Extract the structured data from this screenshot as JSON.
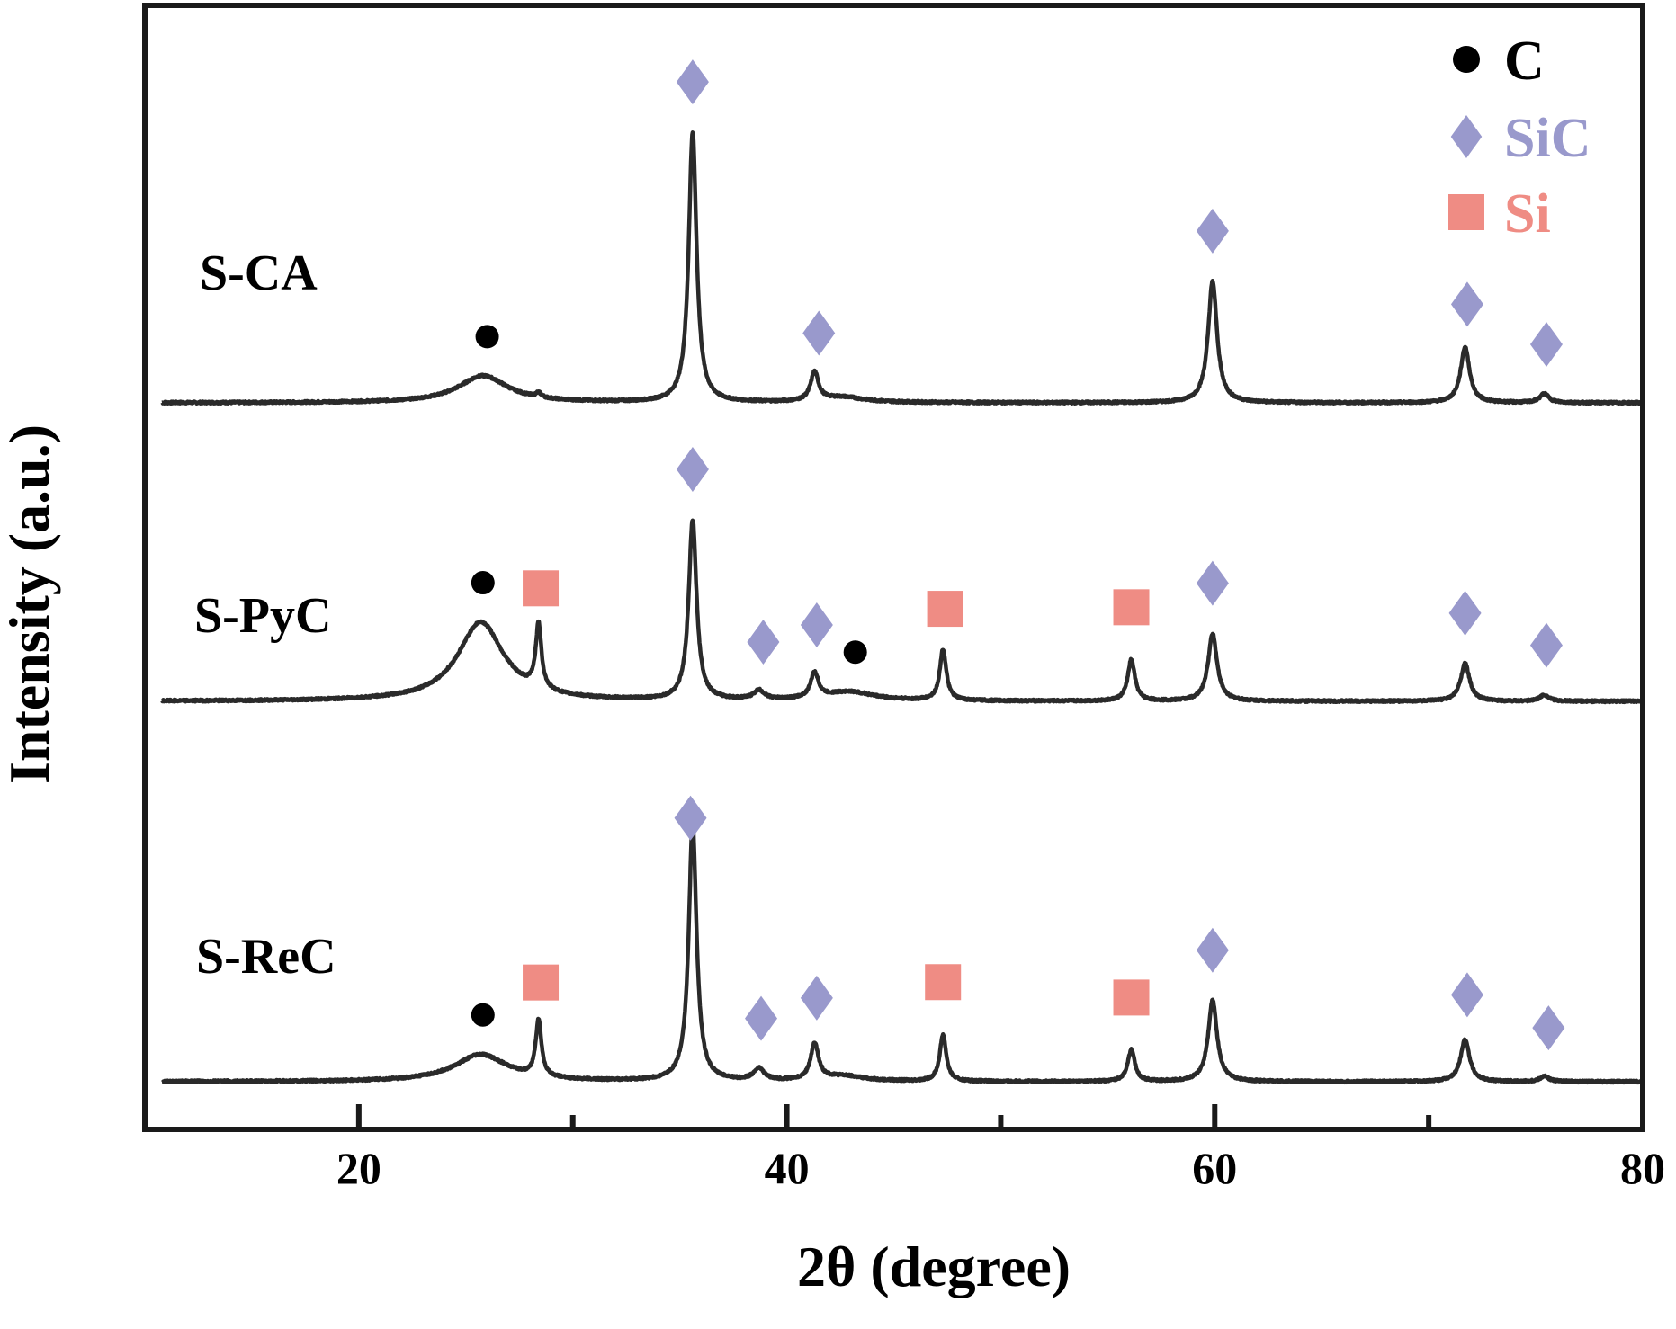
{
  "chart_data": {
    "type": "line",
    "title": "",
    "xlabel": "2θ (degree)",
    "ylabel": "Intensity (a.u.)",
    "xlim": [
      10,
      80
    ],
    "x_major_ticks": [
      20,
      40,
      60,
      80
    ],
    "x_minor_ticks": [
      30,
      50,
      70
    ],
    "grid": false,
    "legend_position": "top-right",
    "legend": [
      {
        "label": "C",
        "marker": "circle",
        "color": "#000000"
      },
      {
        "label": "SiC",
        "marker": "diamond",
        "color": "#9999cc"
      },
      {
        "label": "Si",
        "marker": "square",
        "color": "#ef8c84"
      }
    ],
    "series": [
      {
        "name": "S-CA",
        "peaks": [
          {
            "x": 25.8,
            "height": 30,
            "width": 1.4,
            "phase": "C"
          },
          {
            "x": 28.4,
            "height": 5,
            "width": 0.15
          },
          {
            "x": 35.6,
            "height": 300,
            "width": 0.22,
            "phase": "SiC"
          },
          {
            "x": 41.3,
            "height": 32,
            "width": 0.22,
            "phase": "SiC"
          },
          {
            "x": 42.6,
            "height": 6,
            "width": 1.2
          },
          {
            "x": 59.9,
            "height": 135,
            "width": 0.25,
            "phase": "SiC"
          },
          {
            "x": 71.7,
            "height": 62,
            "width": 0.25,
            "phase": "SiC"
          },
          {
            "x": 75.4,
            "height": 10,
            "width": 0.25,
            "phase": "SiC"
          }
        ]
      },
      {
        "name": "S-PyC",
        "peaks": [
          {
            "x": 25.7,
            "height": 88,
            "width": 1.3,
            "phase": "C"
          },
          {
            "x": 28.4,
            "height": 72,
            "width": 0.16,
            "phase": "Si"
          },
          {
            "x": 35.6,
            "height": 200,
            "width": 0.22,
            "phase": "SiC"
          },
          {
            "x": 38.7,
            "height": 10,
            "width": 0.3,
            "phase": "SiC"
          },
          {
            "x": 41.3,
            "height": 28,
            "width": 0.22,
            "phase": "SiC"
          },
          {
            "x": 42.9,
            "height": 10,
            "width": 1.4,
            "phase": "C"
          },
          {
            "x": 47.3,
            "height": 57,
            "width": 0.18,
            "phase": "Si"
          },
          {
            "x": 56.1,
            "height": 46,
            "width": 0.2,
            "phase": "Si"
          },
          {
            "x": 59.9,
            "height": 75,
            "width": 0.25,
            "phase": "SiC"
          },
          {
            "x": 71.7,
            "height": 42,
            "width": 0.25,
            "phase": "SiC"
          },
          {
            "x": 75.4,
            "height": 7,
            "width": 0.25,
            "phase": "SiC"
          }
        ]
      },
      {
        "name": "S-ReC",
        "peaks": [
          {
            "x": 25.7,
            "height": 30,
            "width": 1.5,
            "phase": "C"
          },
          {
            "x": 28.4,
            "height": 63,
            "width": 0.16,
            "phase": "Si"
          },
          {
            "x": 35.6,
            "height": 285,
            "width": 0.22,
            "phase": "SiC"
          },
          {
            "x": 38.7,
            "height": 13,
            "width": 0.3,
            "phase": "SiC"
          },
          {
            "x": 41.3,
            "height": 40,
            "width": 0.22,
            "phase": "SiC"
          },
          {
            "x": 42.6,
            "height": 6,
            "width": 1.2
          },
          {
            "x": 47.3,
            "height": 52,
            "width": 0.18,
            "phase": "Si"
          },
          {
            "x": 56.1,
            "height": 35,
            "width": 0.2,
            "phase": "Si"
          },
          {
            "x": 59.9,
            "height": 90,
            "width": 0.25,
            "phase": "SiC"
          },
          {
            "x": 71.7,
            "height": 47,
            "width": 0.25,
            "phase": "SiC"
          },
          {
            "x": 75.4,
            "height": 6,
            "width": 0.25,
            "phase": "SiC"
          }
        ]
      }
    ],
    "phase_markers": [
      {
        "series": "S-CA",
        "phase": "C",
        "x": 26.0
      },
      {
        "series": "S-CA",
        "phase": "SiC",
        "x": 35.6
      },
      {
        "series": "S-CA",
        "phase": "SiC",
        "x": 41.5
      },
      {
        "series": "S-CA",
        "phase": "SiC",
        "x": 59.9
      },
      {
        "series": "S-CA",
        "phase": "SiC",
        "x": 71.8
      },
      {
        "series": "S-CA",
        "phase": "SiC",
        "x": 75.5
      },
      {
        "series": "S-PyC",
        "phase": "C",
        "x": 25.8
      },
      {
        "series": "S-PyC",
        "phase": "Si",
        "x": 28.5
      },
      {
        "series": "S-PyC",
        "phase": "SiC",
        "x": 35.6
      },
      {
        "series": "S-PyC",
        "phase": "SiC",
        "x": 38.9
      },
      {
        "series": "S-PyC",
        "phase": "SiC",
        "x": 41.4
      },
      {
        "series": "S-PyC",
        "phase": "C",
        "x": 43.2
      },
      {
        "series": "S-PyC",
        "phase": "Si",
        "x": 47.4
      },
      {
        "series": "S-PyC",
        "phase": "Si",
        "x": 56.1
      },
      {
        "series": "S-PyC",
        "phase": "SiC",
        "x": 59.9
      },
      {
        "series": "S-PyC",
        "phase": "SiC",
        "x": 71.7
      },
      {
        "series": "S-PyC",
        "phase": "SiC",
        "x": 75.5
      },
      {
        "series": "S-ReC",
        "phase": "C",
        "x": 25.8
      },
      {
        "series": "S-ReC",
        "phase": "Si",
        "x": 28.5
      },
      {
        "series": "S-ReC",
        "phase": "SiC",
        "x": 35.5
      },
      {
        "series": "S-ReC",
        "phase": "SiC",
        "x": 38.8
      },
      {
        "series": "S-ReC",
        "phase": "SiC",
        "x": 41.4
      },
      {
        "series": "S-ReC",
        "phase": "Si",
        "x": 47.3
      },
      {
        "series": "S-ReC",
        "phase": "Si",
        "x": 56.1
      },
      {
        "series": "S-ReC",
        "phase": "SiC",
        "x": 59.9
      },
      {
        "series": "S-ReC",
        "phase": "SiC",
        "x": 71.8
      },
      {
        "series": "S-ReC",
        "phase": "SiC",
        "x": 75.6
      }
    ]
  }
}
